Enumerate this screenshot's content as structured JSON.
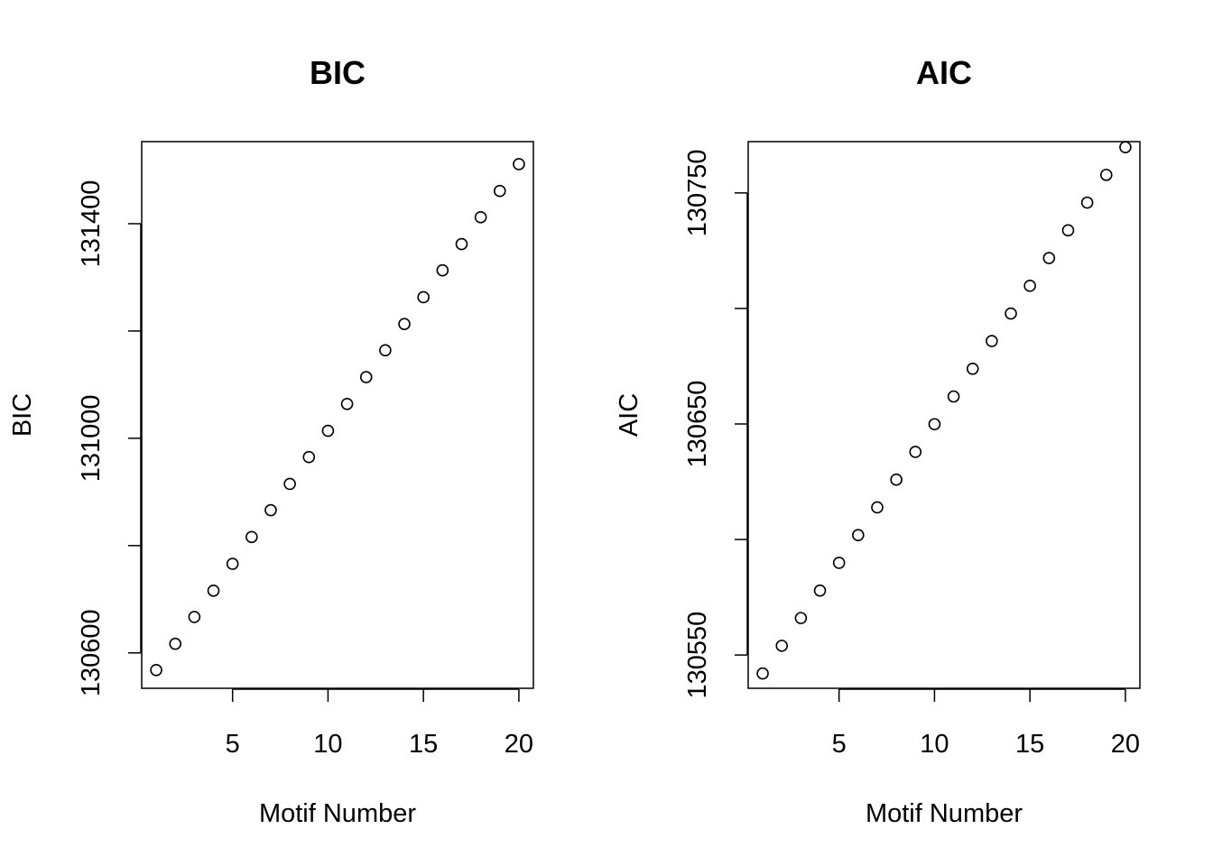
{
  "chart_data": [
    {
      "type": "scatter",
      "title": "BIC",
      "xlabel": "Motif Number",
      "ylabel": "BIC",
      "xlim": [
        0.24,
        20.76
      ],
      "ylim": [
        130534,
        131553
      ],
      "x_ticks": [
        5,
        10,
        15,
        20
      ],
      "x_tick_labels": [
        "5",
        "10",
        "15",
        "20"
      ],
      "y_ticks": [
        130600,
        130800,
        131000,
        131200,
        131400
      ],
      "y_tick_labels": [
        "130600",
        "",
        "131000",
        "",
        "131400"
      ],
      "grid": false,
      "x": [
        1,
        2,
        3,
        4,
        5,
        6,
        7,
        8,
        9,
        10,
        11,
        12,
        13,
        14,
        15,
        16,
        17,
        18,
        19,
        20
      ],
      "y": [
        130568,
        130617,
        130667,
        130716,
        130766,
        130816,
        130866,
        130915,
        130965,
        131014,
        131064,
        131114,
        131164,
        131213,
        131263,
        131313,
        131362,
        131412,
        131461,
        131511
      ]
    },
    {
      "type": "scatter",
      "title": "AIC",
      "xlabel": "Motif Number",
      "ylabel": "AIC",
      "xlim": [
        0.24,
        20.76
      ],
      "ylim": [
        130535.6,
        130772.2
      ],
      "x_ticks": [
        5,
        10,
        15,
        20
      ],
      "x_tick_labels": [
        "5",
        "10",
        "15",
        "20"
      ],
      "y_ticks": [
        130550,
        130600,
        130650,
        130700,
        130750
      ],
      "y_tick_labels": [
        "130550",
        "",
        "130650",
        "",
        "130750"
      ],
      "grid": false,
      "x": [
        1,
        2,
        3,
        4,
        5,
        6,
        7,
        8,
        9,
        10,
        11,
        12,
        13,
        14,
        15,
        16,
        17,
        18,
        19,
        20
      ],
      "y": [
        130542.0,
        130554.0,
        130566.0,
        130577.9,
        130589.9,
        130601.9,
        130613.9,
        130625.9,
        130637.9,
        130649.9,
        130661.9,
        130673.9,
        130685.9,
        130697.8,
        130709.8,
        130721.8,
        130733.8,
        130745.8,
        130757.8,
        130769.8
      ]
    }
  ]
}
